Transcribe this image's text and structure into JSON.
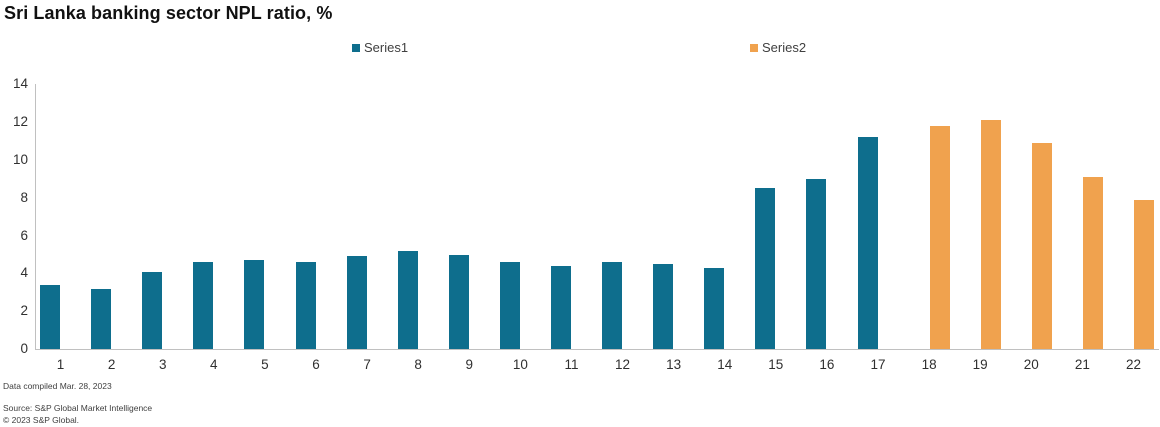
{
  "title": "Sri Lanka banking sector NPL ratio, %",
  "legend": [
    {
      "label": "Series1",
      "color": "#0e6e8d"
    },
    {
      "label": "Series2",
      "color": "#f0a24e"
    }
  ],
  "chart_data": {
    "type": "bar",
    "title": "Sri Lanka banking sector NPL ratio, %",
    "categories": [
      "1",
      "2",
      "3",
      "4",
      "5",
      "6",
      "7",
      "8",
      "9",
      "10",
      "11",
      "12",
      "13",
      "14",
      "15",
      "16",
      "17",
      "18",
      "19",
      "20",
      "21",
      "22"
    ],
    "series": [
      {
        "name": "Series1",
        "color": "#0e6e8d",
        "values": [
          3.4,
          3.2,
          4.1,
          4.6,
          4.7,
          4.6,
          4.9,
          5.2,
          5.0,
          4.6,
          4.4,
          4.6,
          4.5,
          4.3,
          8.5,
          9.0,
          11.2,
          null,
          null,
          null,
          null,
          null
        ]
      },
      {
        "name": "Series2",
        "color": "#f0a24e",
        "values": [
          null,
          null,
          null,
          null,
          null,
          null,
          null,
          null,
          null,
          null,
          null,
          null,
          null,
          null,
          null,
          null,
          null,
          11.8,
          12.1,
          10.9,
          9.1,
          7.9
        ]
      }
    ],
    "xlabel": "",
    "ylabel": "",
    "ylim": [
      0,
      14
    ],
    "yticks": [
      0,
      2,
      4,
      6,
      8,
      10,
      12,
      14
    ],
    "grid": false,
    "legend_position": "top"
  },
  "footer": {
    "compiled": "Data compiled Mar. 28, 2023",
    "source": "Source: S&P Global Market Intelligence",
    "copyright": "© 2023 S&P Global."
  }
}
